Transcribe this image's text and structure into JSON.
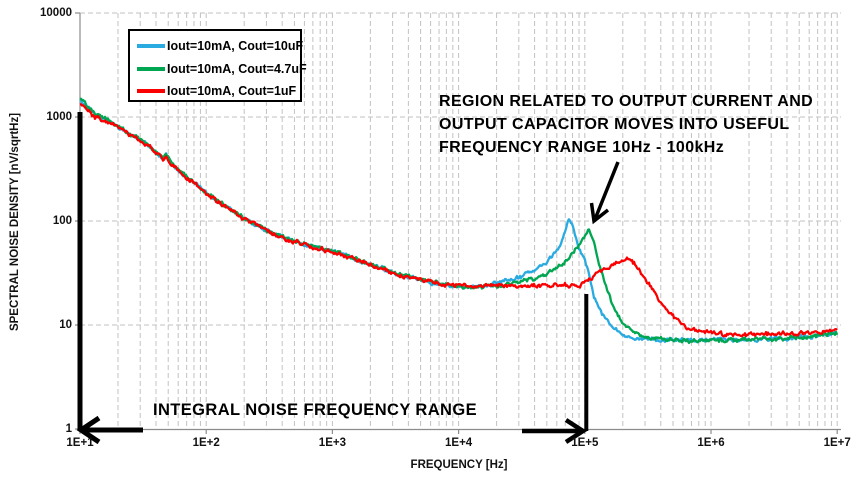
{
  "chart_data": {
    "type": "line",
    "title": "",
    "xlabel": "FREQUENCY [Hz]",
    "ylabel": "SPECTRAL NOISE DENSITY  [nV/sqrtHz]",
    "x_scale": "log",
    "y_scale": "log",
    "xlim": [
      10,
      10000000
    ],
    "ylim": [
      1,
      10000
    ],
    "x_tick_labels": [
      "1E+1",
      "1E+2",
      "1E+3",
      "1E+4",
      "1E+5",
      "1E+6",
      "1E+7"
    ],
    "x_tick_values": [
      10,
      100,
      1000,
      10000,
      100000,
      1000000,
      10000000
    ],
    "y_tick_labels": [
      "1",
      "10",
      "100",
      "1000",
      "10000"
    ],
    "y_tick_values": [
      1,
      10,
      100,
      1000,
      10000
    ],
    "grid": "dashed",
    "legend_position": "top-left",
    "series": [
      {
        "name": "Iout=10mA, Cout=10uF",
        "color": "#29ABE2",
        "points": [
          [
            10,
            1480
          ],
          [
            13,
            1060
          ],
          [
            18,
            880
          ],
          [
            20,
            800
          ],
          [
            25,
            680
          ],
          [
            33,
            560
          ],
          [
            42,
            430
          ],
          [
            46,
            395
          ],
          [
            48,
            445
          ],
          [
            51,
            380
          ],
          [
            60,
            305
          ],
          [
            80,
            235
          ],
          [
            100,
            185
          ],
          [
            140,
            140
          ],
          [
            200,
            106
          ],
          [
            300,
            81
          ],
          [
            450,
            66
          ],
          [
            700,
            57
          ],
          [
            1000,
            51
          ],
          [
            1500,
            43.5
          ],
          [
            2200,
            37
          ],
          [
            3300,
            31
          ],
          [
            5000,
            27
          ],
          [
            7000,
            25
          ],
          [
            10000,
            23.5
          ],
          [
            15000,
            23.5
          ],
          [
            20000,
            25
          ],
          [
            28000,
            28
          ],
          [
            40000,
            33
          ],
          [
            50000,
            40
          ],
          [
            60000,
            52
          ],
          [
            68000,
            70
          ],
          [
            75000,
            104
          ],
          [
            82000,
            82
          ],
          [
            90000,
            55
          ],
          [
            100000,
            44
          ],
          [
            108000,
            30
          ],
          [
            118000,
            19
          ],
          [
            135000,
            13
          ],
          [
            160000,
            10
          ],
          [
            200000,
            8.2
          ],
          [
            280000,
            7.3
          ],
          [
            500000,
            7.1
          ],
          [
            1000000,
            7.1
          ],
          [
            2000000,
            7.2
          ],
          [
            4000000,
            7.5
          ],
          [
            7000000,
            7.9
          ],
          [
            10000000,
            8.4
          ]
        ]
      },
      {
        "name": "Iout=10mA, Cout=4.7uF",
        "color": "#00A651",
        "points": [
          [
            10,
            1530
          ],
          [
            13,
            1080
          ],
          [
            18,
            890
          ],
          [
            20,
            805
          ],
          [
            25,
            685
          ],
          [
            33,
            562
          ],
          [
            42,
            432
          ],
          [
            46,
            397
          ],
          [
            48,
            448
          ],
          [
            51,
            382
          ],
          [
            60,
            306
          ],
          [
            80,
            236
          ],
          [
            100,
            186
          ],
          [
            140,
            141
          ],
          [
            200,
            107
          ],
          [
            300,
            81.5
          ],
          [
            450,
            66.5
          ],
          [
            700,
            57.3
          ],
          [
            1000,
            51.3
          ],
          [
            1500,
            43.8
          ],
          [
            2200,
            37.2
          ],
          [
            3300,
            31.2
          ],
          [
            5000,
            27.2
          ],
          [
            7000,
            25.1
          ],
          [
            10000,
            23.6
          ],
          [
            15000,
            23.3
          ],
          [
            20000,
            23.8
          ],
          [
            30000,
            25.5
          ],
          [
            45000,
            29
          ],
          [
            60000,
            35
          ],
          [
            75000,
            45
          ],
          [
            88000,
            56
          ],
          [
            98000,
            68
          ],
          [
            107000,
            84
          ],
          [
            115000,
            68
          ],
          [
            125000,
            47
          ],
          [
            135000,
            33
          ],
          [
            150000,
            22
          ],
          [
            170000,
            14.5
          ],
          [
            200000,
            10.5
          ],
          [
            250000,
            8.3
          ],
          [
            350000,
            7.4
          ],
          [
            600000,
            7.1
          ],
          [
            1000000,
            7.1
          ],
          [
            2000000,
            7.25
          ],
          [
            4000000,
            7.5
          ],
          [
            7000000,
            7.9
          ],
          [
            10000000,
            8.3
          ]
        ]
      },
      {
        "name": "Iout=10mA, Cout=1uF",
        "color": "#FB0000",
        "points": [
          [
            10,
            1310
          ],
          [
            13,
            1000
          ],
          [
            18,
            850
          ],
          [
            20,
            790
          ],
          [
            25,
            672
          ],
          [
            33,
            552
          ],
          [
            42,
            426
          ],
          [
            46,
            391
          ],
          [
            48,
            440
          ],
          [
            51,
            376
          ],
          [
            60,
            301
          ],
          [
            80,
            233
          ],
          [
            100,
            183
          ],
          [
            140,
            138
          ],
          [
            200,
            105
          ],
          [
            300,
            80
          ],
          [
            450,
            65.5
          ],
          [
            700,
            56.5
          ],
          [
            1000,
            50.5
          ],
          [
            1500,
            43
          ],
          [
            2200,
            36.5
          ],
          [
            3300,
            30.5
          ],
          [
            5000,
            26.8
          ],
          [
            7000,
            25
          ],
          [
            10000,
            24
          ],
          [
            15000,
            23.8
          ],
          [
            30000,
            24
          ],
          [
            60000,
            24
          ],
          [
            80000,
            24.2
          ],
          [
            88000,
            23.5
          ],
          [
            100000,
            26
          ],
          [
            120000,
            30
          ],
          [
            150000,
            35.5
          ],
          [
            180000,
            40
          ],
          [
            215000,
            43
          ],
          [
            250000,
            39
          ],
          [
            300000,
            28
          ],
          [
            350000,
            21
          ],
          [
            420000,
            15
          ],
          [
            520000,
            11.5
          ],
          [
            650000,
            9.5
          ],
          [
            850000,
            8.6
          ],
          [
            1200000,
            8.2
          ],
          [
            3000000,
            8.1
          ],
          [
            6000000,
            8.4
          ],
          [
            10000000,
            8.8
          ]
        ]
      }
    ]
  },
  "annotations": {
    "region_note_lines": [
      "REGION RELATED TO OUTPUT CURRENT AND",
      "OUTPUT CAPACITOR MOVES INTO USEFUL",
      "FREQUENCY RANGE 10Hz - 100kHz"
    ],
    "integral_label": "INTEGRAL NOISE FREQUENCY RANGE",
    "integral_range_hz": [
      10,
      100000
    ]
  },
  "colors": {
    "grid": "#C2C2C2",
    "axis": "#8C8C8C",
    "annotation": "#000000",
    "background": "#FFFFFF"
  }
}
